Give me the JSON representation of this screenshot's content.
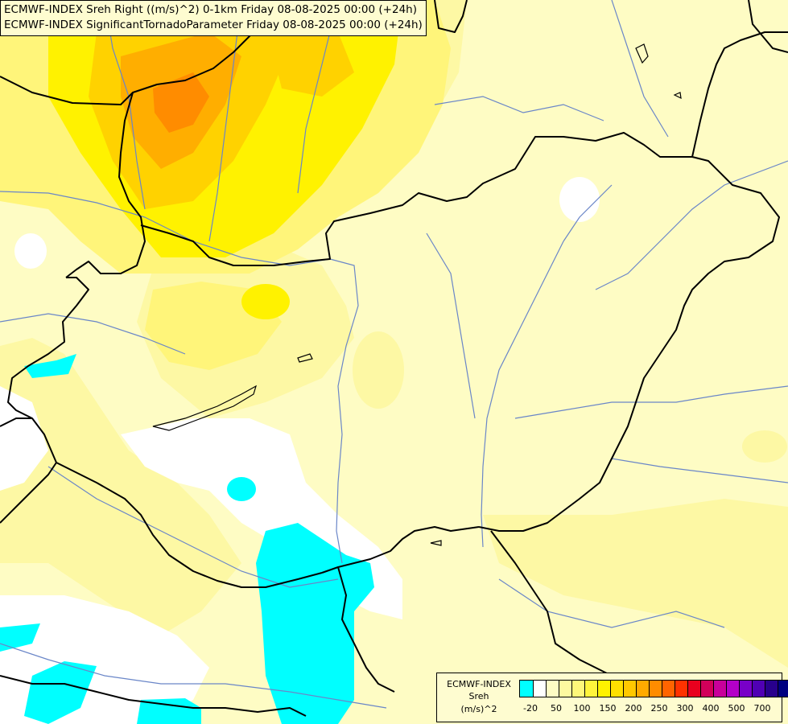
{
  "title_lines": [
    "ECMWF-INDEX Sreh Right ((m/s)^2) 0-1km Friday 08-08-2025 00:00 (+24h)",
    "ECMWF-INDEX SignificantTornadoParameter Friday 08-08-2025 00:00 (+24h)"
  ],
  "legend": {
    "line1": "ECMWF-INDEX",
    "line2": "Sreh",
    "line3": "(m/s)^2",
    "ticks": [
      "-20",
      "50",
      "100",
      "150",
      "200",
      "250",
      "300",
      "400",
      "500",
      "700"
    ],
    "colors": [
      "#00ffff",
      "#ffffff",
      "#fefcc4",
      "#fdf9a0",
      "#fef77a",
      "#fff43c",
      "#fff200",
      "#ffe000",
      "#ffc800",
      "#ffaa00",
      "#ff8c00",
      "#ff6400",
      "#ff3200",
      "#e8001e",
      "#d2005a",
      "#c8009a",
      "#b400c8",
      "#7800c8",
      "#5000b4",
      "#28008c",
      "#000080"
    ]
  },
  "field_colors": {
    "background": "#fefcc4",
    "cyan": "#00ffff",
    "white": "#ffffff",
    "pale_yellow": "#fdf8a4",
    "yellow_light": "#fff57a",
    "yellow": "#fff200",
    "gold": "#ffd200",
    "orange_light": "#ffae00",
    "orange": "#ff8c00",
    "border": "#000000",
    "river": "#6a86c8"
  }
}
